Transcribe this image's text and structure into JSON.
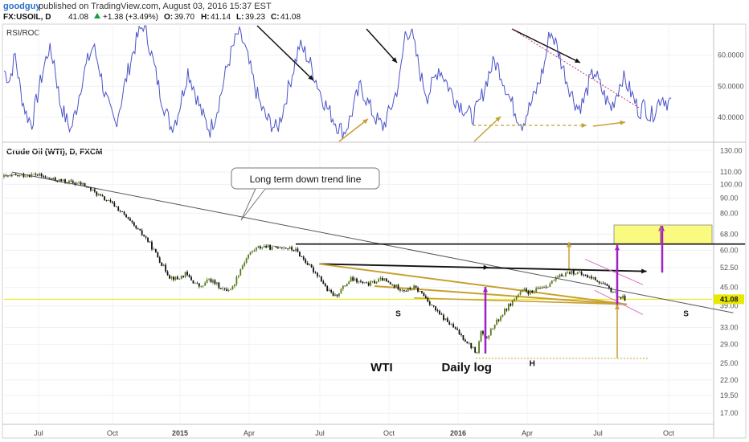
{
  "header": {
    "author": "goodguy",
    "published": "published on TradingView.com, August 03, 2016 15:37 EST",
    "symbol": "FX:USOIL, D",
    "last": "41.08",
    "change": "+1.38 (+3.49%)",
    "open_label": "O:",
    "open": "39.70",
    "high_label": "H:",
    "high": "41.14",
    "low_label": "L:",
    "low": "39.23",
    "close_label": "C:",
    "close": "41.08"
  },
  "colors": {
    "rsi_line": "#4a52c8",
    "candles_up": "#5a7a1a",
    "candles_down": "#111111",
    "trend_gold": "#c8a030",
    "purple": "#a020c8",
    "mauve": "#b06080",
    "price_line": "#e8e800",
    "target_box": "#fafa80"
  },
  "chart_data": [
    {
      "type": "line",
      "indicator": "RSI/ROC",
      "title": "RSI/ROC",
      "x_ticks": [
        "Jul",
        "Oct",
        "2015",
        "Apr",
        "Jul",
        "Oct",
        "2016",
        "Apr",
        "Jul",
        "Oct"
      ],
      "y_ticks": [
        "60.0000",
        "50.0000",
        "40.0000"
      ],
      "ylim": [
        32,
        70
      ],
      "series": [
        {
          "values": [
            55,
            52,
            60,
            48,
            41,
            38,
            47,
            55,
            62,
            58,
            45,
            40,
            36,
            43,
            52,
            58,
            63,
            57,
            48,
            42,
            38,
            45,
            53,
            60,
            66,
            70,
            64,
            56,
            48,
            42,
            37,
            40,
            47,
            55,
            50,
            44,
            39,
            36,
            41,
            48,
            56,
            62,
            67,
            64,
            57,
            50,
            44,
            40,
            38,
            36,
            42,
            49,
            56,
            63,
            61,
            57,
            52,
            47,
            43,
            40,
            37,
            35,
            39,
            45,
            50,
            46,
            42,
            39,
            37,
            41,
            46,
            52,
            67,
            68,
            60,
            52,
            47,
            51,
            56,
            53,
            49,
            46,
            44,
            42,
            40,
            43,
            48,
            54,
            58,
            55,
            50,
            45,
            41,
            38,
            42,
            46,
            51,
            57,
            68,
            64,
            58,
            52,
            47,
            43,
            45,
            51,
            55,
            50,
            46,
            43,
            48,
            53,
            50,
            46,
            42,
            44,
            40,
            43,
            47,
            45
          ]
        }
      ]
    },
    {
      "type": "candlestick",
      "title": "Crude Oil (WTI), D, FXCM",
      "x_ticks": [
        "Jul",
        "Oct",
        "2015",
        "Apr",
        "Jul",
        "Oct",
        "2016",
        "Apr",
        "Jul",
        "Oct"
      ],
      "y_ticks": [
        "130.00",
        "110.00",
        "100.00",
        "90.00",
        "80.00",
        "68.00",
        "60.00",
        "52.50",
        "45.00",
        "41.08",
        "39.00",
        "33.00",
        "29.00",
        "25.00",
        "22.00",
        "19.50",
        "17.00"
      ],
      "y_scale": "log",
      "ylim": [
        15.6,
        136
      ],
      "last_price": 41.08,
      "close_path": [
        [
          0,
          106
        ],
        [
          4,
          107
        ],
        [
          8,
          108
        ],
        [
          12,
          104
        ],
        [
          16,
          102
        ],
        [
          20,
          100
        ],
        [
          22,
          96
        ],
        [
          25,
          90
        ],
        [
          28,
          85
        ],
        [
          30,
          80
        ],
        [
          33,
          72
        ],
        [
          36,
          66
        ],
        [
          38,
          60
        ],
        [
          40,
          54
        ],
        [
          42,
          49
        ],
        [
          44,
          48
        ],
        [
          46,
          50
        ],
        [
          48,
          47
        ],
        [
          50,
          45
        ],
        [
          52,
          48
        ],
        [
          54,
          46
        ],
        [
          56,
          44
        ],
        [
          58,
          45
        ],
        [
          60,
          52
        ],
        [
          62,
          58
        ],
        [
          64,
          61
        ],
        [
          66,
          62
        ],
        [
          68,
          61
        ],
        [
          70,
          62
        ],
        [
          72,
          61
        ],
        [
          74,
          60
        ],
        [
          76,
          56
        ],
        [
          78,
          52
        ],
        [
          80,
          49
        ],
        [
          82,
          44
        ],
        [
          84,
          42
        ],
        [
          86,
          45
        ],
        [
          88,
          48
        ],
        [
          90,
          47
        ],
        [
          92,
          46
        ],
        [
          94,
          47
        ],
        [
          96,
          48
        ],
        [
          98,
          46
        ],
        [
          100,
          45
        ],
        [
          102,
          44
        ],
        [
          104,
          45
        ],
        [
          106,
          43
        ],
        [
          108,
          40
        ],
        [
          110,
          37
        ],
        [
          112,
          35
        ],
        [
          114,
          33
        ],
        [
          116,
          31
        ],
        [
          118,
          29
        ],
        [
          120,
          27
        ],
        [
          121,
          32
        ],
        [
          122,
          30
        ],
        [
          124,
          33
        ],
        [
          126,
          36
        ],
        [
          128,
          39
        ],
        [
          130,
          42
        ],
        [
          132,
          44
        ],
        [
          134,
          43
        ],
        [
          136,
          45
        ],
        [
          138,
          46
        ],
        [
          140,
          48
        ],
        [
          142,
          50
        ],
        [
          144,
          51
        ],
        [
          146,
          50
        ],
        [
          148,
          49
        ],
        [
          150,
          48
        ],
        [
          152,
          46
        ],
        [
          154,
          44
        ],
        [
          156,
          42
        ],
        [
          158,
          41
        ]
      ],
      "lines": [
        {
          "name": "Long term down trend line",
          "from": [
            2,
            110
          ],
          "to": [
            185,
            37
          ]
        },
        {
          "name": "horizontal resistance",
          "from": [
            74,
            63
          ],
          "to": [
            188,
            63
          ]
        },
        {
          "name": "neckline",
          "from": [
            80,
            54
          ],
          "to": [
            163,
            51
          ]
        },
        {
          "name": "gold wedge upper",
          "from": [
            80,
            54
          ],
          "to": [
            158,
            39.5
          ]
        },
        {
          "name": "gold wedge lower",
          "from": [
            94,
            45.5
          ],
          "to": [
            158,
            39.5
          ]
        },
        {
          "name": "gold wedge baseline",
          "from": [
            104,
            41.5
          ],
          "to": [
            158,
            39.5
          ]
        }
      ],
      "annotations": [
        {
          "text": "Long term down trend line",
          "type": "callout"
        },
        {
          "text": "S",
          "x": 100,
          "y": 36
        },
        {
          "text": "H",
          "x": 134,
          "y": 24.5
        },
        {
          "text": "S",
          "x": 173,
          "y": 36
        },
        {
          "text": "WTI",
          "x": 93,
          "y": 23.5
        },
        {
          "text": "Daily log",
          "x": 111,
          "y": 23.5
        }
      ],
      "target_zone": {
        "from": 63,
        "to": 73
      },
      "low_marker": 26
    }
  ]
}
